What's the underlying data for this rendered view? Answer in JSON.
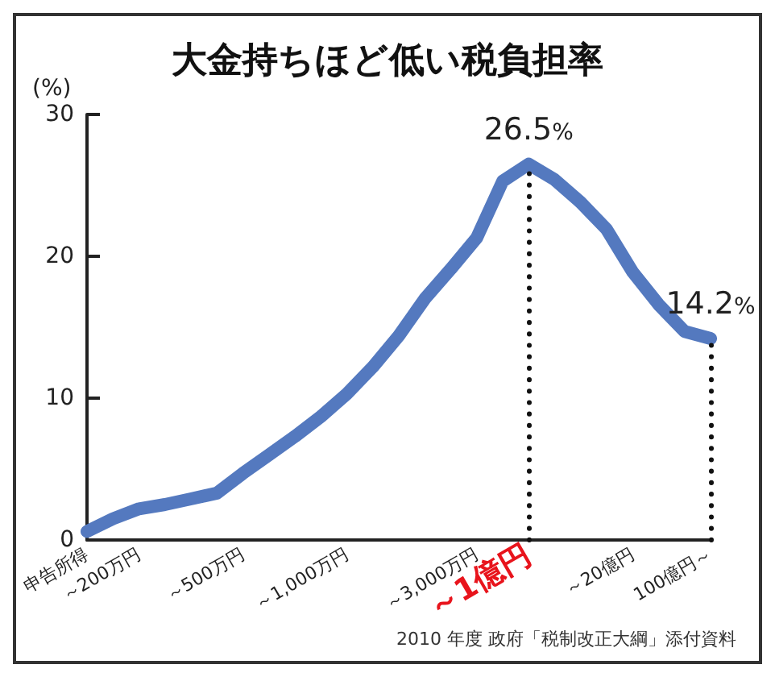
{
  "chart_data": {
    "type": "line",
    "title": "大金持ちほど低い税負担率",
    "ylabel": "(%)",
    "categories": [
      "申告所得",
      null,
      "～200万円",
      null,
      null,
      null,
      "～500万円",
      null,
      null,
      null,
      "～1,000万円",
      null,
      null,
      null,
      null,
      "～3,000万円",
      null,
      "～1億円",
      null,
      null,
      null,
      "～20億円",
      null,
      null,
      "100億円～"
    ],
    "series": [
      {
        "color": "#5479bf",
        "values": [
          0.6,
          1.5,
          2.2,
          2.5,
          2.9,
          3.3,
          4.7,
          6.0,
          7.3,
          8.7,
          10.3,
          12.2,
          14.4,
          17.0,
          19.1,
          21.3,
          25.3,
          26.5,
          25.4,
          23.8,
          21.9,
          18.9,
          16.6,
          14.7,
          14.2
        ],
        "value_labels": [
          null,
          null,
          null,
          null,
          null,
          null,
          null,
          null,
          null,
          null,
          null,
          null,
          null,
          null,
          null,
          null,
          null,
          "26.5%",
          null,
          null,
          null,
          null,
          null,
          null,
          "14.2%"
        ]
      }
    ],
    "ylim": [
      0,
      30
    ],
    "yticks": [
      0,
      10,
      20,
      30
    ],
    "grid": false,
    "marker": "none",
    "line_style": "solid",
    "ref_lines": [
      {
        "axis": "x",
        "value": "～1億円",
        "color": "#111111",
        "line_style": "dotted"
      },
      {
        "axis": "x",
        "value": "100億円～",
        "color": "#111111",
        "line_style": "dotted"
      }
    ],
    "annotations": [
      "2010 年度 政府「税制改正大綱」添付資料"
    ]
  }
}
